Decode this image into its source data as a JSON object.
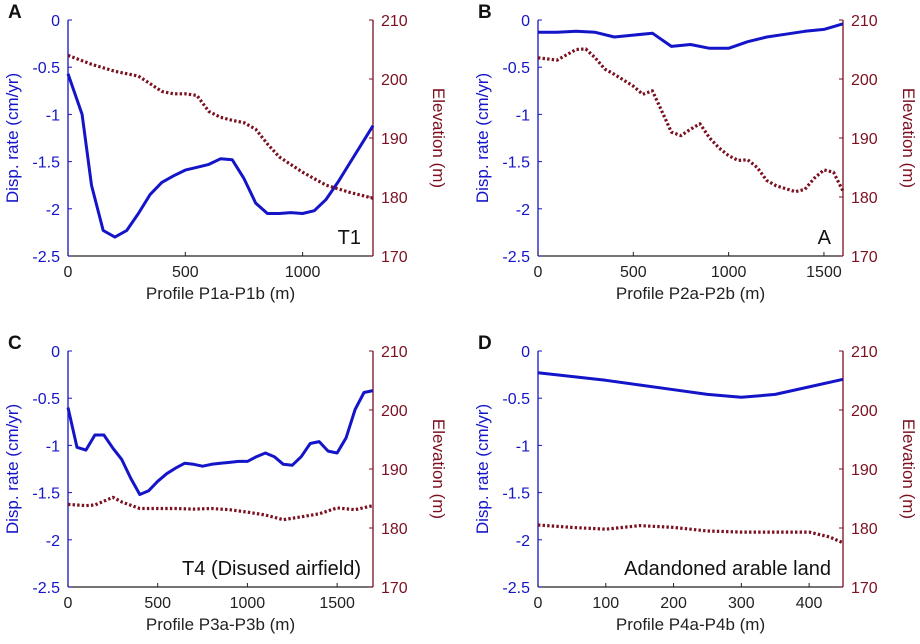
{
  "colors": {
    "disp": "#1414c8",
    "elev": "#7a1020",
    "axis": "#222222"
  },
  "chart_data": [
    {
      "letter": "A",
      "annotation": "T1",
      "type": "line",
      "title": "",
      "xlabel": "Profile P1a-P1b (m)",
      "ylabel_left": "Disp. rate (cm/yr)",
      "ylabel_right": "Elevation (m)",
      "xlim": [
        0,
        1300
      ],
      "xticks": [
        0,
        500,
        1000
      ],
      "xtick_labels": [
        "0",
        "500",
        "1000"
      ],
      "ylim_left": [
        -2.5,
        0
      ],
      "yticks_left": [
        0,
        -0.5,
        -1,
        -1.5,
        -2,
        -2.5
      ],
      "ytick_labels_left": [
        "0",
        "-0.5",
        "-1",
        "-1.5",
        "-2",
        "-2.5"
      ],
      "ylim_right": [
        170,
        210
      ],
      "yticks_right": [
        210,
        200,
        190,
        180,
        170
      ],
      "ytick_labels_right": [
        "210",
        "200",
        "190",
        "180",
        "170"
      ],
      "series": [
        {
          "name": "Displacement rate",
          "axis": "left",
          "style": "solid",
          "x": [
            0,
            60,
            100,
            150,
            200,
            250,
            300,
            350,
            400,
            450,
            500,
            550,
            600,
            650,
            700,
            750,
            800,
            850,
            900,
            950,
            1000,
            1050,
            1100,
            1150,
            1200,
            1250,
            1300
          ],
          "y": [
            -0.57,
            -1.0,
            -1.75,
            -2.23,
            -2.3,
            -2.23,
            -2.05,
            -1.85,
            -1.72,
            -1.65,
            -1.59,
            -1.56,
            -1.53,
            -1.47,
            -1.48,
            -1.68,
            -1.94,
            -2.05,
            -2.05,
            -2.04,
            -2.05,
            -2.02,
            -1.9,
            -1.72,
            -1.52,
            -1.32,
            -1.12
          ]
        },
        {
          "name": "Elevation",
          "axis": "right",
          "style": "dotted",
          "x": [
            0,
            100,
            200,
            300,
            350,
            400,
            450,
            500,
            550,
            600,
            650,
            700,
            750,
            800,
            850,
            900,
            1000,
            1100,
            1200,
            1300
          ],
          "y": [
            204,
            202.5,
            201.3,
            200.5,
            199.2,
            197.9,
            197.5,
            197.5,
            197.2,
            194.5,
            193.5,
            193,
            192.6,
            191.5,
            189,
            186.8,
            184.2,
            182,
            180.8,
            179.8
          ]
        }
      ]
    },
    {
      "letter": "B",
      "annotation": "A",
      "type": "line",
      "title": "",
      "xlabel": "Profile P2a-P2b (m)",
      "ylabel_left": "Disp. rate (cm/yr)",
      "ylabel_right": "Elevation (m)",
      "xlim": [
        0,
        1600
      ],
      "xticks": [
        0,
        500,
        1000,
        1500
      ],
      "xtick_labels": [
        "0",
        "500",
        "1000",
        "1500"
      ],
      "ylim_left": [
        -2.5,
        0
      ],
      "yticks_left": [
        0,
        -0.5,
        -1,
        -1.5,
        -2,
        -2.5
      ],
      "ytick_labels_left": [
        "0",
        "-0.5",
        "-1",
        "-1.5",
        "-2",
        "-2.5"
      ],
      "ylim_right": [
        170,
        210
      ],
      "yticks_right": [
        210,
        200,
        190,
        180,
        170
      ],
      "ytick_labels_right": [
        "210",
        "200",
        "190",
        "180",
        "170"
      ],
      "series": [
        {
          "name": "Displacement rate",
          "axis": "left",
          "style": "solid",
          "x": [
            0,
            100,
            200,
            300,
            400,
            500,
            600,
            700,
            800,
            900,
            1000,
            1100,
            1200,
            1300,
            1400,
            1500,
            1600
          ],
          "y": [
            -0.13,
            -0.13,
            -0.12,
            -0.13,
            -0.18,
            -0.16,
            -0.14,
            -0.28,
            -0.26,
            -0.3,
            -0.3,
            -0.23,
            -0.18,
            -0.15,
            -0.12,
            -0.1,
            -0.04
          ]
        },
        {
          "name": "Elevation",
          "axis": "right",
          "style": "dotted",
          "x": [
            0,
            100,
            200,
            250,
            300,
            350,
            400,
            500,
            550,
            600,
            650,
            700,
            750,
            800,
            850,
            900,
            950,
            1000,
            1050,
            1100,
            1150,
            1200,
            1250,
            1300,
            1350,
            1400,
            1450,
            1500,
            1550,
            1600
          ],
          "y": [
            203.6,
            203.2,
            205,
            205.1,
            203.6,
            201.7,
            200.8,
            198.8,
            197.4,
            198,
            194.5,
            191,
            190.4,
            191.5,
            192.4,
            190,
            188.3,
            187,
            186.2,
            186.3,
            185,
            182.8,
            181.9,
            181.4,
            180.9,
            181.3,
            183.2,
            184.6,
            184.2,
            181
          ]
        }
      ]
    },
    {
      "letter": "C",
      "annotation": "T4 (Disused airfield)",
      "type": "line",
      "title": "",
      "xlabel": "Profile P3a-P3b (m)",
      "ylabel_left": "Disp. rate (cm/yr)",
      "ylabel_right": "Elevation (m)",
      "xlim": [
        0,
        1700
      ],
      "xticks": [
        0,
        500,
        1000,
        1500
      ],
      "xtick_labels": [
        "0",
        "500",
        "1000",
        "1500"
      ],
      "ylim_left": [
        -2.5,
        0
      ],
      "yticks_left": [
        0,
        -0.5,
        -1,
        -1.5,
        -2,
        -2.5
      ],
      "ytick_labels_left": [
        "0",
        "-0.5",
        "-1",
        "-1.5",
        "-2",
        "-2.5"
      ],
      "ylim_right": [
        170,
        210
      ],
      "yticks_right": [
        210,
        200,
        190,
        180,
        170
      ],
      "ytick_labels_right": [
        "210",
        "200",
        "190",
        "180",
        "170"
      ],
      "series": [
        {
          "name": "Displacement rate",
          "axis": "left",
          "style": "solid",
          "x": [
            0,
            50,
            100,
            150,
            200,
            250,
            300,
            350,
            400,
            450,
            500,
            550,
            600,
            650,
            700,
            750,
            800,
            850,
            900,
            950,
            1000,
            1050,
            1100,
            1150,
            1200,
            1250,
            1300,
            1350,
            1400,
            1450,
            1500,
            1550,
            1600,
            1650,
            1700
          ],
          "y": [
            -0.6,
            -1.02,
            -1.05,
            -0.89,
            -0.89,
            -1.03,
            -1.15,
            -1.35,
            -1.52,
            -1.48,
            -1.38,
            -1.3,
            -1.24,
            -1.19,
            -1.2,
            -1.22,
            -1.2,
            -1.19,
            -1.18,
            -1.17,
            -1.17,
            -1.12,
            -1.08,
            -1.12,
            -1.2,
            -1.21,
            -1.12,
            -0.98,
            -0.96,
            -1.06,
            -1.08,
            -0.92,
            -0.62,
            -0.44,
            -0.42
          ]
        },
        {
          "name": "Elevation",
          "axis": "right",
          "style": "dotted",
          "x": [
            0,
            100,
            150,
            250,
            300,
            400,
            500,
            600,
            700,
            800,
            900,
            1000,
            1100,
            1200,
            1300,
            1400,
            1500,
            1600,
            1700
          ],
          "y": [
            184,
            183.8,
            183.9,
            185.2,
            184.4,
            183.3,
            183.3,
            183.3,
            183.2,
            183.3,
            183.1,
            182.7,
            182.2,
            181.4,
            181.9,
            182.4,
            183.4,
            183.1,
            183.8
          ]
        }
      ]
    },
    {
      "letter": "D",
      "annotation": "Adandoned arable land",
      "type": "line",
      "title": "",
      "xlabel": "Profile P4a-P4b (m)",
      "ylabel_left": "Disp. rate (cm/yr)",
      "ylabel_right": "Elevation (m)",
      "xlim": [
        0,
        450
      ],
      "xticks": [
        0,
        100,
        200,
        300,
        400
      ],
      "xtick_labels": [
        "0",
        "100",
        "200",
        "300",
        "400"
      ],
      "ylim_left": [
        -2.5,
        0
      ],
      "yticks_left": [
        0,
        -0.5,
        -1,
        -1.5,
        -2,
        -2.5
      ],
      "ytick_labels_left": [
        "0",
        "-0.5",
        "-1",
        "-1.5",
        "-2",
        "-2.5"
      ],
      "ylim_right": [
        170,
        210
      ],
      "yticks_right": [
        210,
        200,
        190,
        180,
        170
      ],
      "ytick_labels_right": [
        "210",
        "200",
        "190",
        "180",
        "170"
      ],
      "series": [
        {
          "name": "Displacement rate",
          "axis": "left",
          "style": "solid",
          "x": [
            0,
            50,
            100,
            150,
            200,
            250,
            300,
            350,
            400,
            450
          ],
          "y": [
            -0.23,
            -0.27,
            -0.31,
            -0.36,
            -0.41,
            -0.46,
            -0.49,
            -0.46,
            -0.38,
            -0.3
          ]
        },
        {
          "name": "Elevation",
          "axis": "right",
          "style": "dotted",
          "x": [
            0,
            50,
            100,
            150,
            200,
            250,
            300,
            350,
            400,
            430,
            450
          ],
          "y": [
            180.5,
            180.1,
            179.8,
            180.4,
            180.1,
            179.5,
            179.3,
            179.3,
            179.3,
            178.5,
            177.5
          ]
        }
      ]
    }
  ]
}
